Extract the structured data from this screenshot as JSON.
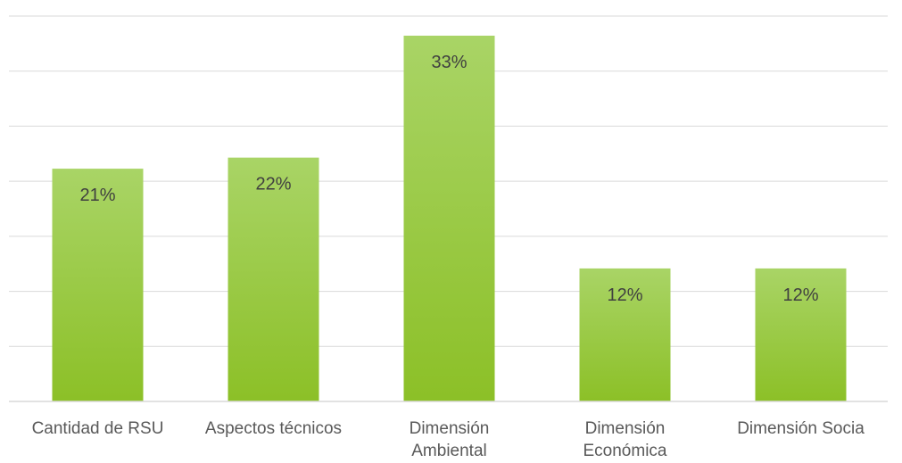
{
  "chart_data": {
    "type": "bar",
    "categories": [
      [
        "Cantidad de RSU"
      ],
      [
        "Aspectos técnicos"
      ],
      [
        "Dimensión",
        "Ambiental"
      ],
      [
        "Dimensión",
        "Económica"
      ],
      [
        "Dimensión Socia"
      ]
    ],
    "values": [
      21,
      22,
      33,
      12,
      12
    ],
    "data_labels": [
      "21%",
      "22%",
      "33%",
      "12%",
      "12%"
    ],
    "ylim": [
      0,
      35
    ],
    "grid": true,
    "colors": {
      "bar_top": "#a9d466",
      "bar_bottom": "#8cc027",
      "gridline": "#d9d9d9",
      "axis": "#d9d9d9",
      "label_text": "#595959",
      "data_label_text": "#404040"
    }
  }
}
